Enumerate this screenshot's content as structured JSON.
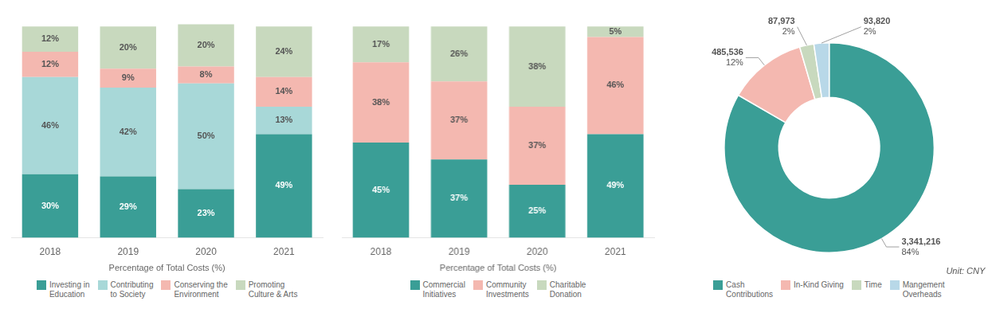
{
  "chart_data": [
    {
      "type": "bar",
      "stacked": true,
      "categories": [
        "2018",
        "2019",
        "2020",
        "2021"
      ],
      "xlabel": "Percentage of Total Costs (%)",
      "ylim": [
        0,
        108
      ],
      "tick_labels": "x",
      "grid": false,
      "data_labels": true,
      "legend": "bottom",
      "series": [
        {
          "name": "Investing in\nEducation",
          "color": "#3a9e96",
          "values": [
            30,
            29,
            23,
            49
          ],
          "value_labels": [
            "30%",
            "29%",
            "23%",
            "49%"
          ]
        },
        {
          "name": "Contributing\nto Society",
          "color": "#a8d8d8",
          "values": [
            46,
            42,
            50,
            13
          ],
          "value_labels": [
            "46%",
            "42%",
            "50%",
            "13%"
          ]
        },
        {
          "name": "Conserving the\nEnvironment",
          "color": "#f4b8b0",
          "values": [
            12,
            9,
            8,
            14
          ],
          "value_labels": [
            "12%",
            "9%",
            "8%",
            "14%"
          ]
        },
        {
          "name": "Promoting\nCulture & Arts",
          "color": "#c8d9be",
          "values": [
            12,
            20,
            20,
            24
          ],
          "value_labels": [
            "12%",
            "20%",
            "20%",
            "24%"
          ]
        }
      ]
    },
    {
      "type": "bar",
      "stacked": true,
      "categories": [
        "2018",
        "2019",
        "2020",
        "2021"
      ],
      "xlabel": "Percentage of Total Costs (%)",
      "ylim": [
        0,
        108
      ],
      "tick_labels": "x",
      "grid": false,
      "data_labels": true,
      "legend": "bottom",
      "series": [
        {
          "name": "Commercial\nInitiatives",
          "color": "#3a9e96",
          "values": [
            45,
            37,
            25,
            49
          ],
          "value_labels": [
            "45%",
            "37%",
            "25%",
            "49%"
          ]
        },
        {
          "name": "Community\nInvestments",
          "color": "#f4b8b0",
          "values": [
            38,
            37,
            37,
            46
          ],
          "value_labels": [
            "38%",
            "37%",
            "37%",
            "46%"
          ]
        },
        {
          "name": "Charitable\nDonation",
          "color": "#c8d9be",
          "values": [
            17,
            26,
            38,
            5
          ],
          "value_labels": [
            "17%",
            "26%",
            "38%",
            "5%"
          ]
        }
      ]
    },
    {
      "type": "doughnut",
      "categories": [
        "Cash\nContributions",
        "In-Kind Giving",
        "Time",
        "Mangement\nOverheads"
      ],
      "values": [
        3341216,
        485536,
        87973,
        93820
      ],
      "value_labels": [
        "3,341,216",
        "485,536",
        "87,973",
        "93,820"
      ],
      "shares": [
        84,
        12,
        2,
        2
      ],
      "share_labels": [
        "84%",
        "12%",
        "2%",
        "2%"
      ],
      "colors": [
        "#3a9e96",
        "#f4b8b0",
        "#c8d9be",
        "#b8d8e8"
      ],
      "annotations": [
        "Unit: CNY"
      ],
      "data_labels": true,
      "legend": "bottom"
    }
  ]
}
